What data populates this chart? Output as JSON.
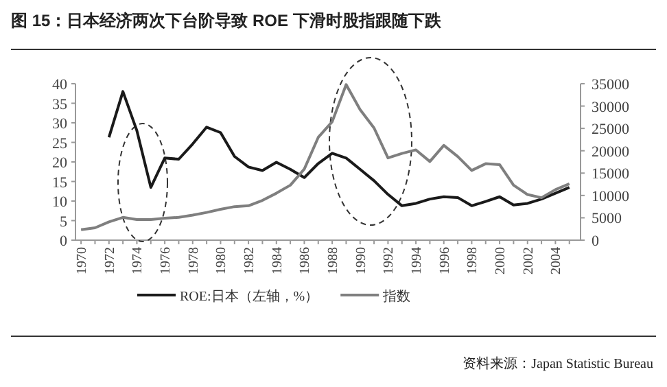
{
  "chart_data": {
    "type": "line",
    "title": "图 15：日本经济两次下台阶导致 ROE 下滑时股指跟随下跌",
    "x": [
      1970,
      1971,
      1972,
      1973,
      1974,
      1975,
      1976,
      1977,
      1978,
      1979,
      1980,
      1981,
      1982,
      1983,
      1984,
      1985,
      1986,
      1987,
      1988,
      1989,
      1990,
      1991,
      1992,
      1993,
      1994,
      1995,
      1996,
      1997,
      1998,
      1999,
      2000,
      2001,
      2002,
      2003,
      2004,
      2005
    ],
    "series": [
      {
        "name": "ROE:日本（左轴，%）",
        "color": "#1a1a1a",
        "values": [
          null,
          null,
          26.3,
          38,
          28,
          13.5,
          21,
          20.7,
          24.6,
          28.9,
          27.5,
          21.4,
          18.7,
          17.8,
          19.9,
          18.1,
          16,
          19.6,
          22.2,
          21,
          18.1,
          15.2,
          11.7,
          8.8,
          9.4,
          10.5,
          11.1,
          10.9,
          8.8,
          9.9,
          11.1,
          9,
          9.4,
          10.5,
          12,
          13.5
        ]
      },
      {
        "name": "指数",
        "color": "#7f7f7f",
        "axis": "y2",
        "values": [
          2350,
          2760,
          4100,
          5100,
          4600,
          4600,
          4900,
          5100,
          5600,
          6200,
          6900,
          7500,
          7700,
          8900,
          10500,
          12300,
          15900,
          23000,
          26500,
          34800,
          29200,
          25100,
          18400,
          19400,
          20200,
          17600,
          21200,
          18700,
          15600,
          17100,
          16900,
          12300,
          10200,
          9500,
          11300,
          12600
        ]
      }
    ],
    "xlim": [
      1969.6,
      2005.8
    ],
    "xticks": [
      1970,
      {
        "value": 1971,
        "label": null
      },
      1972,
      {
        "value": 1973,
        "label": null
      },
      1974,
      {
        "value": 1975,
        "label": null
      },
      1976,
      {
        "value": 1977,
        "label": null
      },
      1978,
      {
        "value": 1979,
        "label": null
      },
      1980,
      {
        "value": 1981,
        "label": null
      },
      1982,
      {
        "value": 1983,
        "label": null
      },
      1984,
      {
        "value": 1985,
        "label": null
      },
      1986,
      {
        "value": 1987,
        "label": null
      },
      1988,
      {
        "value": 1989,
        "label": null
      },
      1990,
      {
        "value": 1991,
        "label": null
      },
      1992,
      {
        "value": 1993,
        "label": null
      },
      1994,
      {
        "value": 1995,
        "label": null
      },
      1996,
      {
        "value": 1997,
        "label": null
      },
      1998,
      {
        "value": 1999,
        "label": null
      },
      2000,
      {
        "value": 2001,
        "label": null
      },
      2002,
      {
        "value": 2003,
        "label": null
      },
      2004,
      {
        "value": 2005,
        "label": null
      }
    ],
    "ylim": [
      0,
      40
    ],
    "yticks": [
      0,
      5,
      10,
      15,
      20,
      25,
      30,
      35,
      40
    ],
    "y2lim": [
      0,
      35000
    ],
    "y2ticks": [
      0,
      5000,
      10000,
      15000,
      20000,
      25000,
      30000,
      35000
    ],
    "grid": false,
    "legend": "bottom",
    "marker": "none",
    "line_style": "solid",
    "annotations": [
      "资料来源：Japan Statistic Bureau"
    ]
  }
}
